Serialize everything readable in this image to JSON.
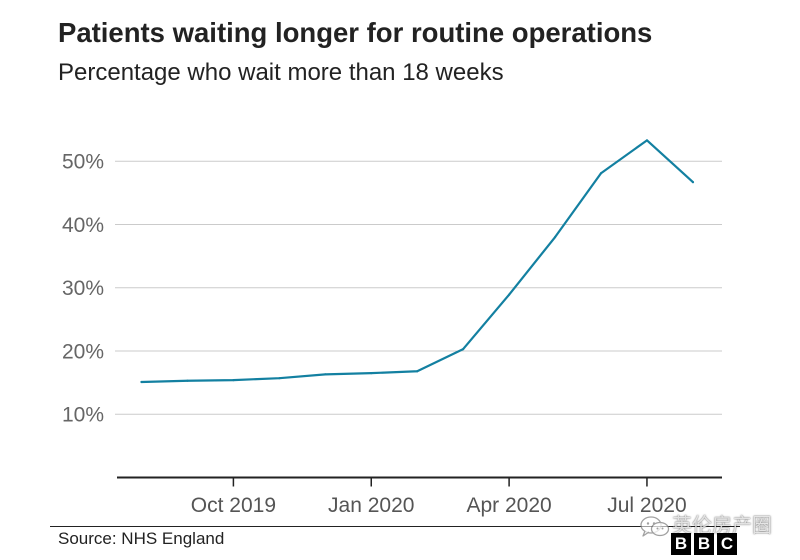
{
  "chart_data": {
    "type": "line",
    "title": "Patients waiting longer for routine operations",
    "subtitle": "Percentage who wait more than 18 weeks",
    "xlabel": "",
    "ylabel": "",
    "x": [
      "2019-08",
      "2019-09",
      "2019-10",
      "2019-11",
      "2019-12",
      "2020-01",
      "2020-02",
      "2020-03",
      "2020-04",
      "2020-05",
      "2020-06",
      "2020-07",
      "2020-08"
    ],
    "series": [
      {
        "values": [
          15.1,
          15.3,
          15.4,
          15.7,
          16.3,
          16.5,
          16.8,
          20.3,
          28.9,
          38.0,
          48.1,
          53.3,
          46.7
        ],
        "color": "#1380A1"
      }
    ],
    "xlim": [
      "2019-07-15",
      "2020-08-20"
    ],
    "ylim": [
      0,
      55
    ],
    "xticks": [
      {
        "value": "2019-10",
        "label": "Oct 2019"
      },
      {
        "value": "2020-01",
        "label": "Jan 2020"
      },
      {
        "value": "2020-04",
        "label": "Apr 2020"
      },
      {
        "value": "2020-07",
        "label": "Jul 2020"
      }
    ],
    "yticks": [
      {
        "value": 10,
        "label": "10%"
      },
      {
        "value": 20,
        "label": "20%"
      },
      {
        "value": 30,
        "label": "30%"
      },
      {
        "value": 40,
        "label": "40%"
      },
      {
        "value": 50,
        "label": "50%"
      }
    ],
    "grid": {
      "horizontal": true,
      "vertical": false
    },
    "legend": false,
    "source": "Source: NHS England"
  },
  "branding": {
    "logo_letters": [
      "B",
      "B",
      "C"
    ],
    "watermark": "英伦房产圈",
    "watermark_icon": "wechat-icon"
  }
}
